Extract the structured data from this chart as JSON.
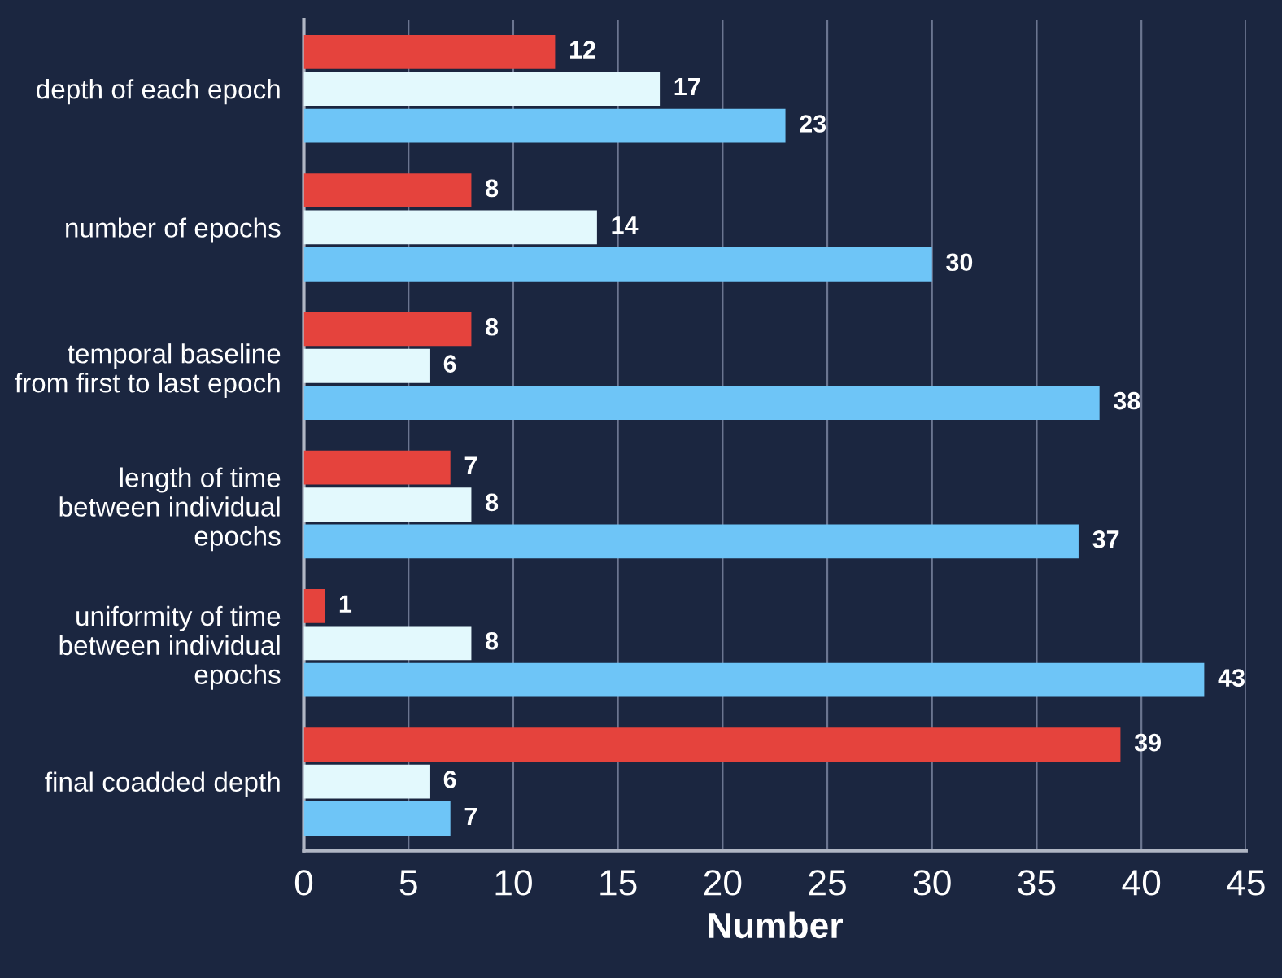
{
  "chart_data": {
    "type": "bar",
    "orientation": "horizontal",
    "xlabel": "Number",
    "categories": [
      "depth of each epoch",
      "number of epochs",
      "temporal baseline\nfrom first to last epoch",
      "length of time\nbetween individual\nepochs",
      "uniformity of time\nbetween individual\nepochs",
      "final coadded depth"
    ],
    "series": [
      {
        "color": "#e5433d",
        "values": [
          12,
          8,
          8,
          7,
          1,
          39
        ]
      },
      {
        "color": "#e3f9fd",
        "values": [
          17,
          14,
          6,
          8,
          8,
          6
        ]
      },
      {
        "color": "#6ec5f7",
        "values": [
          23,
          30,
          38,
          37,
          43,
          7
        ]
      }
    ],
    "xlim": [
      0,
      45
    ],
    "xticks": [
      0,
      5,
      10,
      15,
      20,
      25,
      30,
      35,
      40,
      45
    ],
    "grid": "x",
    "data_labels": true
  }
}
